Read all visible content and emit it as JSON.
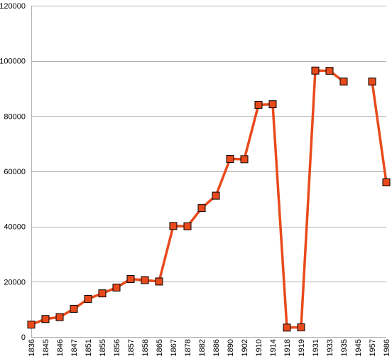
{
  "chart_data": {
    "type": "line",
    "title": "",
    "xlabel": "",
    "ylabel": "",
    "categories": [
      "1836",
      "1845",
      "1846",
      "1847",
      "1851",
      "1855",
      "1856",
      "1857",
      "1858",
      "1865",
      "1867",
      "1878",
      "1882",
      "1886",
      "1890",
      "1902",
      "1910",
      "1914",
      "1918",
      "1919",
      "1931",
      "1933",
      "1935",
      "1945",
      "1957",
      "1986"
    ],
    "series": [
      {
        "values": [
          4500,
          6500,
          7200,
          10200,
          13800,
          15800,
          17900,
          21000,
          20600,
          20100,
          40200,
          40100,
          46700,
          51200,
          64500,
          64400,
          84100,
          84300,
          3400,
          3500,
          96500,
          96400,
          92500,
          null,
          92500,
          56000
        ]
      }
    ],
    "yticks": [
      "0",
      "20000",
      "40000",
      "60000",
      "80000",
      "100000",
      "120000"
    ],
    "ylim": [
      0,
      120000
    ],
    "grid": true,
    "legend": "none",
    "colors": {
      "line": "#e84a1b",
      "marker": "#e84a1b",
      "marker_border": "#000000",
      "grid": "#b3b3b3"
    }
  }
}
